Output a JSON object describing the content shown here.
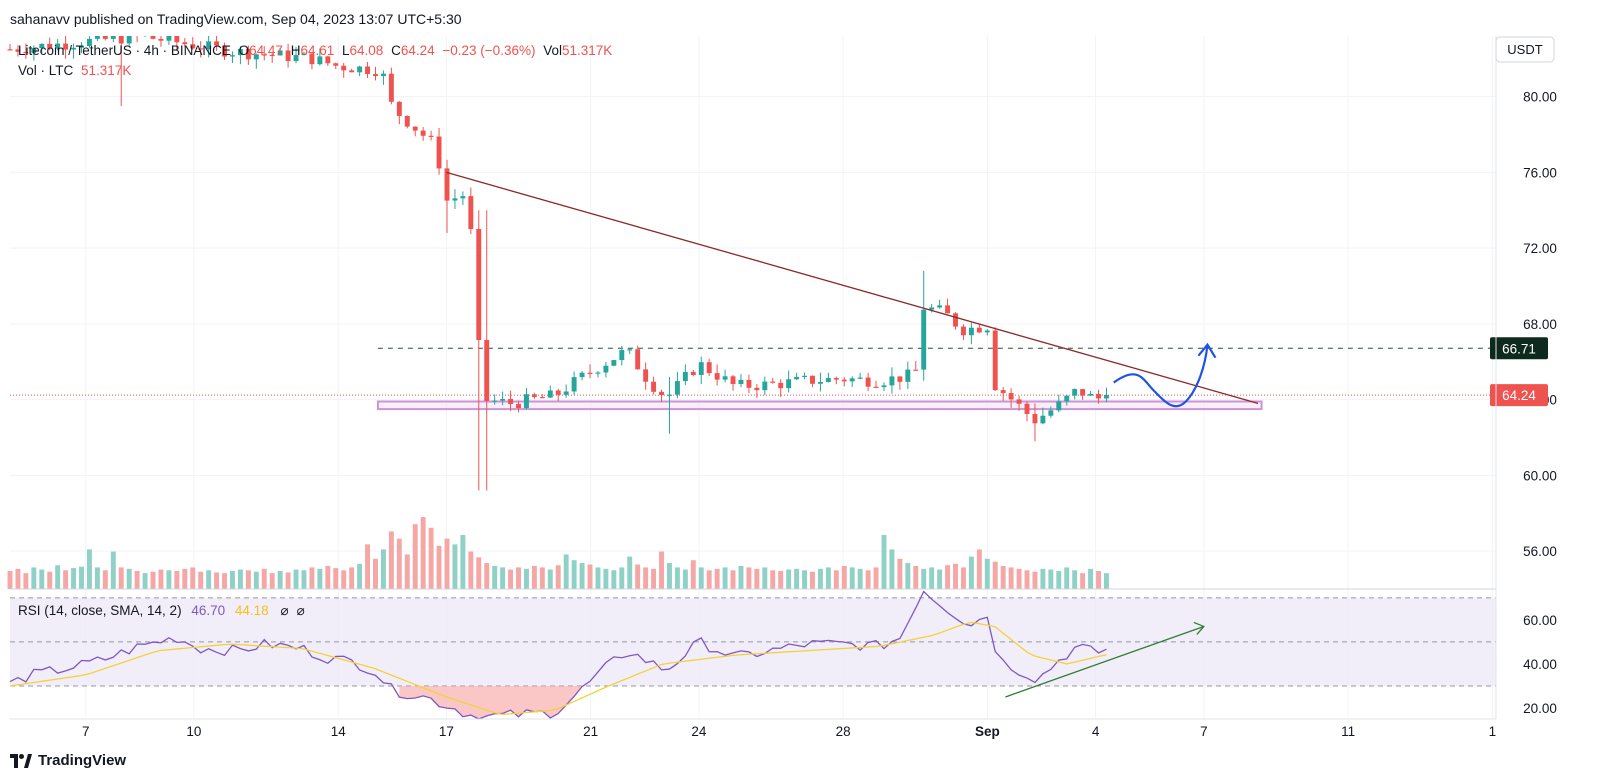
{
  "header": {
    "published": "sahanavv published on TradingView.com, Sep 04, 2023 13:07 UTC+5:30"
  },
  "legend": {
    "symbol": "Litecoin / TetherUS · 4h · BINANCE",
    "o_label": "O",
    "o": "64.47",
    "h_label": "H",
    "h": "64.61",
    "l_label": "L",
    "l": "64.08",
    "c_label": "C",
    "c": "64.24",
    "change": "−0.23 (−0.36%)",
    "vol_label": "Vol",
    "vol": "51.317K",
    "vol_ltc_label": "Vol · LTC",
    "vol_ltc": "51.317K",
    "rsi_label": "RSI (14, close, SMA, 14, 2)",
    "rsi": "46.70",
    "rsi_sma": "44.18"
  },
  "currency": "USDT",
  "footer": {
    "brand": "TradingView"
  },
  "colors": {
    "up": "#26a69a",
    "down": "#ef5350",
    "up_vol": "#8fd0c7",
    "down_vol": "#f5a7a5",
    "rsi": "#7e57c2",
    "rsi_sma": "#f2d23a",
    "trendline": "#8b2a2a",
    "support_zone": "#ce93d8",
    "arrow": "#1e53e5",
    "rsi_arrow": "#2e7d32"
  },
  "chart_data": {
    "type": "candlestick",
    "title": "Litecoin / TetherUS · 4h · BINANCE",
    "price_axis": {
      "ylim": [
        54.0,
        83.2
      ],
      "ticks": [
        "56.00",
        "60.00",
        "64.00",
        "68.00",
        "72.00",
        "76.00",
        "80.00"
      ],
      "tick_values": [
        56,
        60,
        64,
        68,
        72,
        76,
        80
      ]
    },
    "time_axis": {
      "labels": [
        "7",
        "10",
        "14",
        "17",
        "21",
        "24",
        "28",
        "Sep",
        "4",
        "7",
        "11",
        "1"
      ],
      "label_days": [
        7,
        10,
        14,
        17,
        21,
        24,
        28,
        32,
        35,
        38,
        42,
        46
      ],
      "xlim_days": [
        4.9,
        46.1
      ]
    },
    "price_labels": [
      {
        "value": 66.71,
        "text": "66.71",
        "color": "#0e2a1f"
      },
      {
        "value": 64.24,
        "text": "64.24",
        "color": "#ef5350"
      }
    ],
    "resistance_level": 66.71,
    "last_price": 64.24,
    "support_zone": {
      "from_day": 15.1,
      "to_day": 39.6,
      "low": 63.5,
      "high": 63.9
    },
    "trendline": {
      "from": {
        "day": 17.0,
        "price": 76.0
      },
      "to": {
        "day": 39.5,
        "price": 63.8
      }
    },
    "projection": [
      {
        "day": 35.5,
        "price": 64.9
      },
      {
        "day": 36.6,
        "price": 64.5
      },
      {
        "day": 37.5,
        "price": 63.9
      },
      {
        "day": 38.1,
        "price": 66.9
      }
    ],
    "key_points": [
      {
        "day": 4.9,
        "price": 82.5
      },
      {
        "day": 8.5,
        "price": 83.2
      },
      {
        "day": 11.0,
        "price": 82.4
      },
      {
        "day": 13.3,
        "price": 82.0
      },
      {
        "day": 14.0,
        "price": 81.6
      },
      {
        "day": 15.2,
        "price": 81.4
      },
      {
        "day": 15.5,
        "price": 79.4
      },
      {
        "day": 16.7,
        "price": 77.4
      },
      {
        "day": 17.0,
        "price": 74.5
      },
      {
        "day": 17.6,
        "price": 74.9
      },
      {
        "day": 18.0,
        "price": 64.0
      },
      {
        "day": 18.8,
        "price": 63.8
      },
      {
        "day": 20.0,
        "price": 64.2
      },
      {
        "day": 21.0,
        "price": 65.5
      },
      {
        "day": 22.0,
        "price": 66.6
      },
      {
        "day": 22.6,
        "price": 65.0
      },
      {
        "day": 23.1,
        "price": 64.1
      },
      {
        "day": 24.0,
        "price": 65.9
      },
      {
        "day": 25.0,
        "price": 64.7
      },
      {
        "day": 26.0,
        "price": 64.8
      },
      {
        "day": 27.0,
        "price": 65.0
      },
      {
        "day": 28.0,
        "price": 65.1
      },
      {
        "day": 29.0,
        "price": 65.0
      },
      {
        "day": 30.0,
        "price": 65.3
      },
      {
        "day": 30.2,
        "price": 68.9
      },
      {
        "day": 30.8,
        "price": 68.6
      },
      {
        "day": 31.3,
        "price": 67.7
      },
      {
        "day": 32.0,
        "price": 67.9
      },
      {
        "day": 32.2,
        "price": 64.8
      },
      {
        "day": 32.8,
        "price": 63.8
      },
      {
        "day": 33.3,
        "price": 62.9
      },
      {
        "day": 33.9,
        "price": 63.6
      },
      {
        "day": 34.5,
        "price": 64.5
      },
      {
        "day": 35.0,
        "price": 64.0
      },
      {
        "day": 35.3,
        "price": 64.24
      }
    ],
    "spikes": [
      {
        "day": 8.0,
        "low": 79.5,
        "high": 82.4
      },
      {
        "day": 17.1,
        "low": 72.8,
        "high": 74.6
      },
      {
        "day": 18.0,
        "low": 59.2,
        "high": 74.0
      },
      {
        "day": 23.1,
        "low": 62.2,
        "high": 65.2
      },
      {
        "day": 30.2,
        "low": 65.0,
        "high": 70.8
      },
      {
        "day": 33.3,
        "low": 61.8,
        "high": 63.8
      }
    ],
    "volume_rel": [
      0.25,
      0.28,
      0.22,
      0.3,
      0.27,
      0.24,
      0.33,
      0.26,
      0.29,
      0.31,
      0.55,
      0.3,
      0.26,
      0.52,
      0.3,
      0.28,
      0.25,
      0.22,
      0.24,
      0.27,
      0.26,
      0.25,
      0.28,
      0.3,
      0.24,
      0.26,
      0.23,
      0.22,
      0.25,
      0.27,
      0.26,
      0.24,
      0.28,
      0.22,
      0.25,
      0.23,
      0.27,
      0.26,
      0.3,
      0.28,
      0.32,
      0.29,
      0.26,
      0.3,
      0.35,
      0.62,
      0.42,
      0.55,
      0.8,
      0.7,
      0.48,
      0.9,
      1.0,
      0.85,
      0.6,
      0.7,
      0.62,
      0.75,
      0.52,
      0.44,
      0.36,
      0.32,
      0.3,
      0.27,
      0.3,
      0.28,
      0.32,
      0.3,
      0.27,
      0.33,
      0.48,
      0.4,
      0.36,
      0.34,
      0.3,
      0.28,
      0.26,
      0.3,
      0.45,
      0.34,
      0.3,
      0.28,
      0.52,
      0.36,
      0.3,
      0.27,
      0.4,
      0.3,
      0.26,
      0.28,
      0.3,
      0.26,
      0.32,
      0.3,
      0.28,
      0.3,
      0.26,
      0.25,
      0.27,
      0.28,
      0.26,
      0.24,
      0.28,
      0.3,
      0.26,
      0.32,
      0.3,
      0.28,
      0.26,
      0.3,
      0.75,
      0.55,
      0.42,
      0.36,
      0.32,
      0.28,
      0.3,
      0.27,
      0.33,
      0.35,
      0.3,
      0.45,
      0.55,
      0.42,
      0.38,
      0.32,
      0.3,
      0.28,
      0.26,
      0.24,
      0.28,
      0.27,
      0.25,
      0.3,
      0.26,
      0.22,
      0.28,
      0.25,
      0.22
    ],
    "rsi": {
      "ylim": [
        15,
        74
      ],
      "ticks": [
        "20.00",
        "40.00",
        "60.00"
      ],
      "tick_values": [
        20,
        40,
        60
      ],
      "bands": [
        30,
        50,
        70
      ],
      "key_points": [
        {
          "day": 4.9,
          "value": 31
        },
        {
          "day": 5.5,
          "value": 35
        },
        {
          "day": 6.5,
          "value": 38
        },
        {
          "day": 7.5,
          "value": 42
        },
        {
          "day": 8.5,
          "value": 48
        },
        {
          "day": 9.5,
          "value": 52
        },
        {
          "day": 10.2,
          "value": 47
        },
        {
          "day": 11.2,
          "value": 46
        },
        {
          "day": 12.0,
          "value": 49
        },
        {
          "day": 13.0,
          "value": 47
        },
        {
          "day": 13.6,
          "value": 43
        },
        {
          "day": 14.4,
          "value": 41
        },
        {
          "day": 15.0,
          "value": 37
        },
        {
          "day": 15.5,
          "value": 28
        },
        {
          "day": 16.4,
          "value": 25
        },
        {
          "day": 17.2,
          "value": 20
        },
        {
          "day": 17.6,
          "value": 17
        },
        {
          "day": 18.0,
          "value": 16
        },
        {
          "day": 19.0,
          "value": 17
        },
        {
          "day": 20.0,
          "value": 18
        },
        {
          "day": 20.6,
          "value": 26
        },
        {
          "day": 21.4,
          "value": 38
        },
        {
          "day": 22.0,
          "value": 46
        },
        {
          "day": 22.6,
          "value": 41
        },
        {
          "day": 23.1,
          "value": 37
        },
        {
          "day": 24.0,
          "value": 50
        },
        {
          "day": 25.0,
          "value": 43
        },
        {
          "day": 26.0,
          "value": 46
        },
        {
          "day": 27.0,
          "value": 49
        },
        {
          "day": 28.0,
          "value": 49
        },
        {
          "day": 29.0,
          "value": 48
        },
        {
          "day": 29.6,
          "value": 52
        },
        {
          "day": 30.2,
          "value": 74
        },
        {
          "day": 30.8,
          "value": 66
        },
        {
          "day": 31.5,
          "value": 58
        },
        {
          "day": 32.0,
          "value": 62
        },
        {
          "day": 32.3,
          "value": 42
        },
        {
          "day": 33.0,
          "value": 36
        },
        {
          "day": 33.4,
          "value": 33
        },
        {
          "day": 34.0,
          "value": 42
        },
        {
          "day": 34.5,
          "value": 48
        },
        {
          "day": 35.0,
          "value": 45
        },
        {
          "day": 35.3,
          "value": 46.7
        }
      ],
      "sma_key_points": [
        {
          "day": 4.9,
          "value": 30
        },
        {
          "day": 7.0,
          "value": 35
        },
        {
          "day": 9.0,
          "value": 46
        },
        {
          "day": 11.0,
          "value": 49
        },
        {
          "day": 13.0,
          "value": 47
        },
        {
          "day": 15.0,
          "value": 38
        },
        {
          "day": 17.0,
          "value": 25
        },
        {
          "day": 18.5,
          "value": 17
        },
        {
          "day": 20.0,
          "value": 19
        },
        {
          "day": 21.5,
          "value": 30
        },
        {
          "day": 23.0,
          "value": 40
        },
        {
          "day": 25.0,
          "value": 44
        },
        {
          "day": 27.0,
          "value": 46
        },
        {
          "day": 29.0,
          "value": 48
        },
        {
          "day": 30.5,
          "value": 53
        },
        {
          "day": 31.5,
          "value": 59
        },
        {
          "day": 32.2,
          "value": 57
        },
        {
          "day": 33.2,
          "value": 44
        },
        {
          "day": 34.2,
          "value": 40
        },
        {
          "day": 35.3,
          "value": 44.18
        }
      ],
      "divergence_line": {
        "from": {
          "day": 32.5,
          "value": 25
        },
        "to": {
          "day": 38.0,
          "value": 57
        }
      }
    }
  }
}
